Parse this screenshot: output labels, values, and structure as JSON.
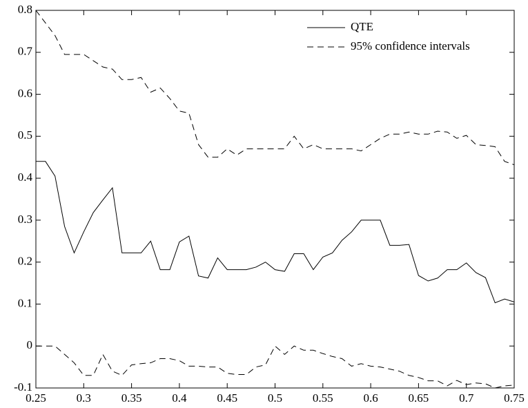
{
  "chart_data": {
    "type": "line",
    "x": [
      0.25,
      0.26,
      0.27,
      0.28,
      0.29,
      0.3,
      0.31,
      0.32,
      0.33,
      0.34,
      0.35,
      0.36,
      0.37,
      0.38,
      0.39,
      0.4,
      0.41,
      0.42,
      0.43,
      0.44,
      0.45,
      0.46,
      0.47,
      0.48,
      0.49,
      0.5,
      0.51,
      0.52,
      0.53,
      0.54,
      0.55,
      0.56,
      0.57,
      0.58,
      0.59,
      0.6,
      0.61,
      0.62,
      0.63,
      0.64,
      0.65,
      0.66,
      0.67,
      0.68,
      0.69,
      0.7,
      0.71,
      0.72,
      0.73,
      0.74,
      0.75
    ],
    "series": [
      {
        "name": "QTE",
        "color": "#000000",
        "linestyle": "solid",
        "values": [
          0.44,
          0.44,
          0.405,
          0.285,
          0.222,
          0.272,
          0.318,
          0.348,
          0.377,
          0.222,
          0.222,
          0.222,
          0.25,
          0.182,
          0.182,
          0.248,
          0.262,
          0.167,
          0.162,
          0.21,
          0.182,
          0.182,
          0.182,
          0.188,
          0.2,
          0.182,
          0.178,
          0.22,
          0.22,
          0.182,
          0.212,
          0.222,
          0.252,
          0.272,
          0.3,
          0.3,
          0.3,
          0.24,
          0.24,
          0.242,
          0.168,
          0.155,
          0.162,
          0.182,
          0.182,
          0.198,
          0.175,
          0.163,
          0.103,
          0.112,
          0.105
        ]
      },
      {
        "name": "95% confidence intervals",
        "color": "#000000",
        "linestyle": "dashed",
        "upper": [
          0.8,
          0.77,
          0.74,
          0.695,
          0.695,
          0.695,
          0.68,
          0.665,
          0.66,
          0.635,
          0.635,
          0.64,
          0.605,
          0.615,
          0.59,
          0.56,
          0.555,
          0.48,
          0.45,
          0.45,
          0.47,
          0.455,
          0.47,
          0.47,
          0.47,
          0.47,
          0.47,
          0.5,
          0.47,
          0.48,
          0.47,
          0.47,
          0.47,
          0.47,
          0.465,
          0.48,
          0.495,
          0.505,
          0.505,
          0.51,
          0.505,
          0.505,
          0.512,
          0.51,
          0.495,
          0.502,
          0.48,
          0.478,
          0.475,
          0.44,
          0.432
        ],
        "lower": [
          0.0,
          0.0,
          0.0,
          -0.02,
          -0.04,
          -0.07,
          -0.07,
          -0.02,
          -0.06,
          -0.07,
          -0.045,
          -0.042,
          -0.04,
          -0.03,
          -0.03,
          -0.035,
          -0.048,
          -0.048,
          -0.05,
          -0.05,
          -0.065,
          -0.068,
          -0.068,
          -0.05,
          -0.045,
          0.0,
          -0.02,
          0.0,
          -0.01,
          -0.01,
          -0.018,
          -0.025,
          -0.03,
          -0.048,
          -0.042,
          -0.048,
          -0.05,
          -0.055,
          -0.06,
          -0.07,
          -0.075,
          -0.083,
          -0.083,
          -0.095,
          -0.082,
          -0.092,
          -0.088,
          -0.09,
          -0.1,
          -0.095,
          -0.093
        ]
      }
    ],
    "xlim": [
      0.25,
      0.75
    ],
    "ylim": [
      -0.1,
      0.8
    ],
    "xticks": [
      0.25,
      0.3,
      0.35,
      0.4,
      0.45,
      0.5,
      0.55,
      0.6,
      0.65,
      0.7,
      0.75
    ],
    "yticks": [
      -0.1,
      0,
      0.1,
      0.2,
      0.3,
      0.4,
      0.5,
      0.6,
      0.7,
      0.8
    ],
    "grid": false,
    "legend": "top-right"
  }
}
